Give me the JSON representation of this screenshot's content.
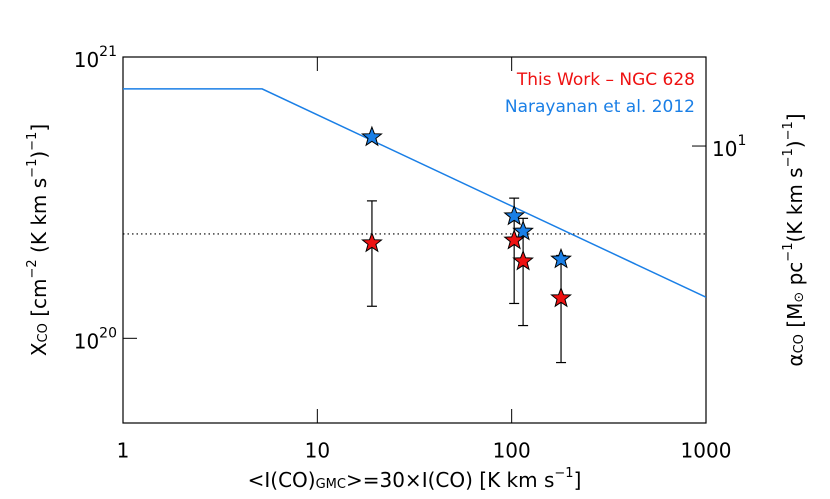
{
  "chart_data": {
    "type": "scatter",
    "log_x": true,
    "log_y": true,
    "xlim": [
      1,
      1000
    ],
    "xticks": [
      1,
      10,
      100,
      1000
    ],
    "ylim": [
      5e+19,
      1e+21
    ],
    "yticks": [
      {
        "value": 1e+20,
        "label": "10",
        "exponent": "20"
      },
      {
        "value": 1e+21,
        "label": "10",
        "exponent": "21"
      }
    ],
    "y2lim": [
      1.04,
      20.7
    ],
    "y2ticks": [
      {
        "value": 10,
        "label": "10",
        "exponent": "1"
      }
    ],
    "xlabel": [
      {
        "text": "<I(CO)"
      },
      {
        "text": "GMC",
        "shift": "sub"
      },
      {
        "text": ">=30×I(CO) [K km s"
      },
      {
        "text": "−1",
        "shift": "sup"
      },
      {
        "text": "]"
      }
    ],
    "ylabel": [
      {
        "text": "X"
      },
      {
        "text": "CO",
        "shift": "sub"
      },
      {
        "text": " [cm"
      },
      {
        "text": "−2",
        "shift": "sup"
      },
      {
        "text": " (K km s"
      },
      {
        "text": "−1",
        "shift": "sup"
      },
      {
        "text": ")"
      },
      {
        "text": "−1",
        "shift": "sup"
      },
      {
        "text": "]"
      }
    ],
    "y2label": [
      {
        "text": "α"
      },
      {
        "text": "CO",
        "shift": "sub"
      },
      {
        "text": " [M"
      },
      {
        "text": "⊙",
        "shift": "sub"
      },
      {
        "text": " pc"
      },
      {
        "text": "−1",
        "shift": "sup"
      },
      {
        "text": "(K km s"
      },
      {
        "text": "−1",
        "shift": "sup"
      },
      {
        "text": ")"
      },
      {
        "text": "−1",
        "shift": "sup"
      },
      {
        "text": "]"
      }
    ],
    "series": [
      {
        "name": "This Work – NGC 628",
        "color": "#ee1111",
        "x": [
          19.1,
          103,
          114.5,
          179.5
        ],
        "values": [
          2.18e+20,
          2.23e+20,
          1.88e+20,
          1.39e+20
        ],
        "error_low": [
          1.3e+20,
          1.33e+20,
          1.11e+20,
          8.2e+19
        ],
        "error_high": [
          3.08e+20,
          3.15e+20,
          2.67e+20,
          1.97e+20
        ]
      },
      {
        "name": "Narayanan et al. 2012",
        "color": "#1a7fe6",
        "x": [
          19.1,
          103,
          114.5,
          179.5
        ],
        "values": [
          5.19e+20,
          2.72e+20,
          2.4e+20,
          1.91e+20
        ]
      }
    ],
    "line": {
      "color": "#1a7fe6",
      "x": [
        1,
        5.2,
        1000
      ],
      "values": [
        7.7e+20,
        7.7e+20,
        1.4e+20
      ]
    },
    "hline": {
      "value": 2.35e+20,
      "style": "dotted"
    }
  }
}
